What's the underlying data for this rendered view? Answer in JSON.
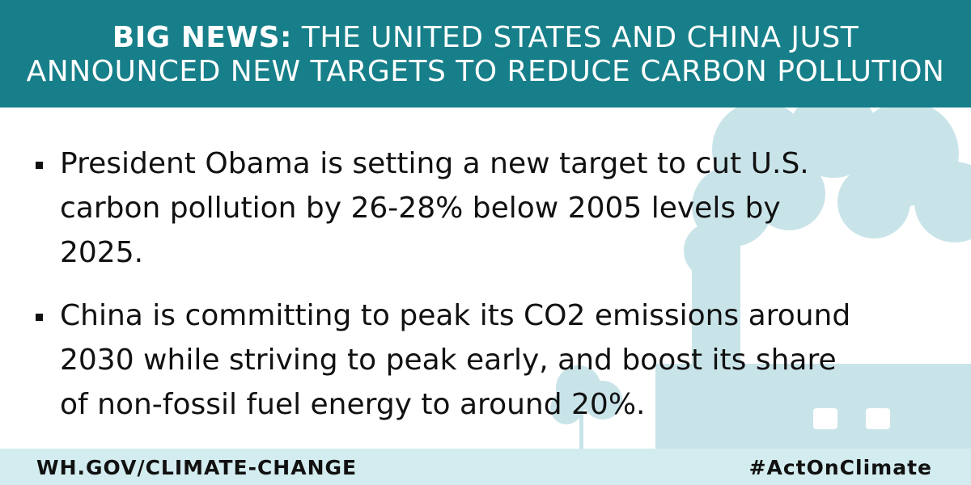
{
  "header": {
    "lead": "BIG NEWS:",
    "lines": [
      "THE UNITED STATES AND CHINA JUST",
      "ANNOUNCED NEW TARGETS TO REDUCE CARBON POLLUTION"
    ]
  },
  "bullets": [
    "President Obama is setting a new target to cut U.S. carbon pollution by 26-28% below 2005 levels by 2025.",
    "China is committing to peak its CO2 emissions around 2030 while striving to peak early, and boost its share of non-fossil fuel energy to around 20%."
  ],
  "footer": {
    "url": "WH.GOV/CLIMATE-CHANGE",
    "hashtag": "#ActOnClimate"
  }
}
